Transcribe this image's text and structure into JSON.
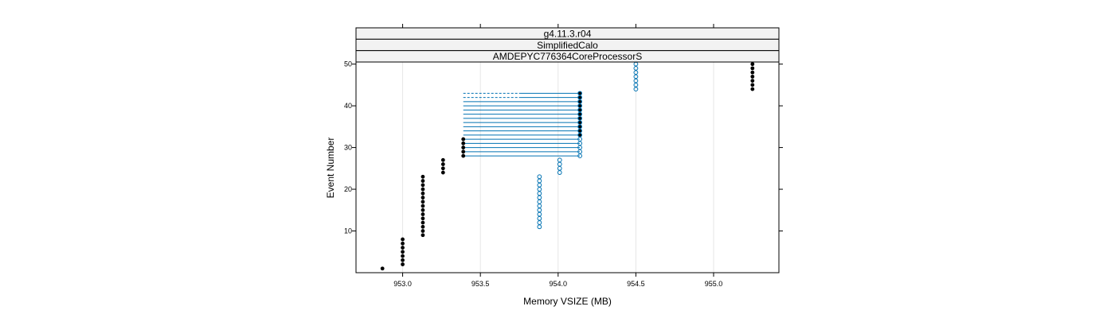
{
  "chart_data": {
    "type": "scatter",
    "strips": [
      "g4.11.3.r04",
      "SimplifiedCalo",
      "AMDEPYC776364CoreProcessorS"
    ],
    "xlabel": "Memory VSIZE (MB)",
    "ylabel": "Event Number",
    "xlim": [
      952.7,
      955.42
    ],
    "ylim": [
      0,
      50.5
    ],
    "x_ticks": [
      953.0,
      953.5,
      954.0,
      954.5,
      955.0
    ],
    "x_tick_labels": [
      "953.0",
      "953.5",
      "954.0",
      "954.5",
      "955.0"
    ],
    "y_ticks": [
      10,
      20,
      30,
      40,
      50
    ],
    "y_tick_labels": [
      "10",
      "20",
      "30",
      "40",
      "50"
    ],
    "grid": "vertical",
    "colors": {
      "series_black": "#000000",
      "series_blue": "#0072B2",
      "strip_bg": "#f2f2f2",
      "grid": "#e6e6e6"
    },
    "series": [
      {
        "name": "black",
        "marker": "filled-circle",
        "points": [
          [
            952.87,
            1
          ],
          [
            953.0,
            2
          ],
          [
            953.0,
            3
          ],
          [
            953.0,
            4
          ],
          [
            953.0,
            5
          ],
          [
            953.0,
            6
          ],
          [
            953.0,
            7
          ],
          [
            953.0,
            8
          ],
          [
            953.13,
            9
          ],
          [
            953.13,
            10
          ],
          [
            953.13,
            11
          ],
          [
            953.13,
            12
          ],
          [
            953.13,
            13
          ],
          [
            953.13,
            14
          ],
          [
            953.13,
            15
          ],
          [
            953.13,
            16
          ],
          [
            953.13,
            17
          ],
          [
            953.13,
            18
          ],
          [
            953.13,
            19
          ],
          [
            953.13,
            20
          ],
          [
            953.13,
            21
          ],
          [
            953.13,
            22
          ],
          [
            953.13,
            23
          ],
          [
            953.26,
            24
          ],
          [
            953.26,
            25
          ],
          [
            953.26,
            26
          ],
          [
            953.26,
            27
          ],
          [
            953.39,
            28
          ],
          [
            953.39,
            29
          ],
          [
            953.39,
            30
          ],
          [
            953.39,
            31
          ],
          [
            953.39,
            32
          ],
          [
            954.14,
            33
          ],
          [
            954.14,
            34
          ],
          [
            954.14,
            35
          ],
          [
            954.14,
            36
          ],
          [
            954.14,
            37
          ],
          [
            954.14,
            38
          ],
          [
            954.14,
            39
          ],
          [
            954.14,
            40
          ],
          [
            954.14,
            41
          ],
          [
            954.14,
            42
          ],
          [
            954.14,
            43
          ],
          [
            955.25,
            44
          ],
          [
            955.25,
            45
          ],
          [
            955.25,
            46
          ],
          [
            955.25,
            47
          ],
          [
            955.25,
            48
          ],
          [
            955.25,
            49
          ],
          [
            955.25,
            50
          ]
        ]
      },
      {
        "name": "blue",
        "marker": "open-circle",
        "points": [
          [
            953.88,
            11
          ],
          [
            953.88,
            12
          ],
          [
            953.88,
            13
          ],
          [
            953.88,
            14
          ],
          [
            953.88,
            15
          ],
          [
            953.88,
            16
          ],
          [
            953.88,
            17
          ],
          [
            953.88,
            18
          ],
          [
            953.88,
            19
          ],
          [
            953.88,
            20
          ],
          [
            953.88,
            21
          ],
          [
            953.88,
            22
          ],
          [
            953.88,
            23
          ],
          [
            954.01,
            24
          ],
          [
            954.01,
            25
          ],
          [
            954.01,
            26
          ],
          [
            954.01,
            27
          ],
          [
            954.14,
            28
          ],
          [
            954.14,
            29
          ],
          [
            954.14,
            30
          ],
          [
            954.14,
            31
          ],
          [
            954.14,
            32
          ],
          [
            954.14,
            33
          ],
          [
            954.14,
            34
          ],
          [
            954.14,
            35
          ],
          [
            954.14,
            36
          ],
          [
            954.14,
            37
          ],
          [
            954.14,
            38
          ],
          [
            954.14,
            39
          ],
          [
            954.14,
            40
          ],
          [
            954.14,
            41
          ],
          [
            954.14,
            42
          ],
          [
            954.14,
            43
          ],
          [
            954.5,
            44
          ],
          [
            954.5,
            45
          ],
          [
            954.5,
            46
          ],
          [
            954.5,
            47
          ],
          [
            954.5,
            48
          ],
          [
            954.5,
            49
          ],
          [
            954.5,
            50
          ]
        ]
      }
    ],
    "connectors": {
      "from_x": 953.39,
      "to_x": 954.14,
      "dashed_split_x": 953.76,
      "dashed_events": [
        42,
        43
      ],
      "solid_events": [
        28,
        29,
        30,
        31,
        32,
        33,
        34,
        35,
        36,
        37,
        38,
        39,
        40,
        41
      ]
    }
  }
}
